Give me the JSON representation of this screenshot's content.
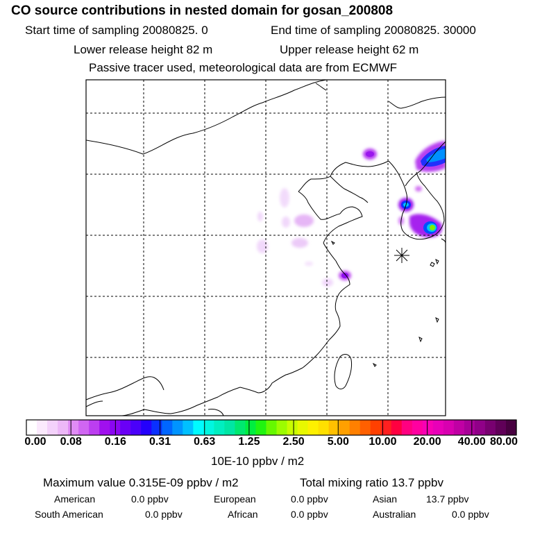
{
  "header": {
    "title": "CO  source contributions in nested domain for gosan_200808",
    "start_label": "Start time of sampling 20080825.     0",
    "end_label": "End time of sampling 20080825. 30000",
    "lower_height": "Lower release height   82 m",
    "upper_height": "Upper release height   62 m",
    "tracer_note": "Passive tracer used, meteorological data are from ECMWF"
  },
  "map": {
    "receptor_marker": "gosan-receptor"
  },
  "colorbar": {
    "unit": "10E-10 ppbv / m2",
    "tick_labels": [
      "0.00",
      "0.08",
      "0.16",
      "0.31",
      "0.63",
      "1.25",
      "2.50",
      "5.00",
      "10.00",
      "20.00",
      "40.00",
      "80.00"
    ],
    "colors": [
      "#ffffff",
      "#fbeafd",
      "#f4d2fb",
      "#edb8f8",
      "#e08cf5",
      "#d066f2",
      "#bc3ef0",
      "#a010ee",
      "#8a06f2",
      "#6a00f6",
      "#4a00fa",
      "#2400fc",
      "#0a30ff",
      "#0066ff",
      "#0094ff",
      "#00c0ff",
      "#00fbff",
      "#00f6e0",
      "#00eec0",
      "#00e6a4",
      "#00e870",
      "#00ee40",
      "#20f410",
      "#66f800",
      "#9cfc00",
      "#c8fc00",
      "#e8f800",
      "#fef000",
      "#ffe000",
      "#ffc000",
      "#ffa000",
      "#ff8000",
      "#ff6000",
      "#ff4000",
      "#ff2020",
      "#ff0040",
      "#ff0080",
      "#ff00a0",
      "#f800b4",
      "#e800b8",
      "#d800b0",
      "#c000a4",
      "#a80098",
      "#900088",
      "#780070",
      "#600058",
      "#480040"
    ]
  },
  "stats": {
    "max_value": "Maximum value  0.315E-09 ppbv / m2",
    "total_mixing": "Total mixing ratio       13.7 ppbv",
    "american_label": "American",
    "american_value": "0.0 ppbv",
    "european_label": "European",
    "european_value": "0.0 ppbv",
    "asian_label": "Asian",
    "asian_value": "13.7 ppbv",
    "south_american_label": "South American",
    "south_american_value": "0.0 ppbv",
    "african_label": "African",
    "african_value": "0.0 ppbv",
    "australian_label": "Australian",
    "australian_value": "0.0 ppbv"
  }
}
